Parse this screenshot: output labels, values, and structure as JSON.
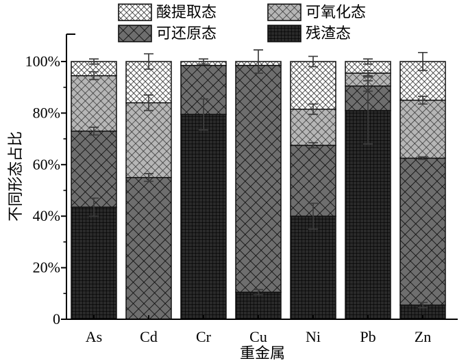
{
  "legend": [
    {
      "label": "酸提取态",
      "key": "acid"
    },
    {
      "label": "可氧化态",
      "key": "oxidizable"
    },
    {
      "label": "可还原态",
      "key": "reducible"
    },
    {
      "label": "残渣态",
      "key": "residual"
    }
  ],
  "chart_data": {
    "type": "bar",
    "stacked": true,
    "title": "",
    "xlabel": "重金属",
    "ylabel": "不同形态占比",
    "categories": [
      "As",
      "Cd",
      "Cr",
      "Cu",
      "Ni",
      "Pb",
      "Zn"
    ],
    "series": [
      {
        "name": "残渣态",
        "key": "residual",
        "values": [
          43.5,
          0,
          79.5,
          10.5,
          40,
          81,
          5.5
        ],
        "errors": [
          3.5,
          0,
          6,
          1,
          5,
          13,
          1
        ]
      },
      {
        "name": "可还原态",
        "key": "reducible",
        "values": [
          29.5,
          55,
          19,
          88,
          27.5,
          9.5,
          57
        ],
        "errors": [
          1.5,
          1.5,
          0,
          0,
          1,
          2,
          0.5
        ]
      },
      {
        "name": "可氧化态",
        "key": "oxidizable",
        "values": [
          21.5,
          29,
          0,
          0,
          14,
          5,
          22.5
        ],
        "errors": [
          1.5,
          3,
          0,
          0,
          2,
          1,
          1.5
        ]
      },
      {
        "name": "酸提取态",
        "key": "acid",
        "values": [
          5.5,
          16,
          1.5,
          1.5,
          18.5,
          4.5,
          15
        ],
        "errors": [
          1,
          3,
          1,
          4.5,
          2,
          1,
          3.5
        ]
      }
    ],
    "yticks": [
      "0",
      "20%",
      "40%",
      "60%",
      "80%",
      "100%"
    ],
    "ytick_values": [
      0,
      20,
      40,
      60,
      80,
      100
    ],
    "ylim": [
      0,
      100
    ],
    "legend_position": "top",
    "grid": false,
    "patterns": {
      "acid": {
        "bg": "#ffffff",
        "line": "#141414"
      },
      "oxidizable": {
        "bg": "#b6b6b6",
        "line": "#333333"
      },
      "reducible": {
        "bg": "#6e6e6e",
        "line": "#111111"
      },
      "residual": {
        "bg": "#2a2a2a",
        "line": "#000000"
      }
    },
    "axis_color": "#000000",
    "error_bar_color": "#3c3c3c"
  }
}
